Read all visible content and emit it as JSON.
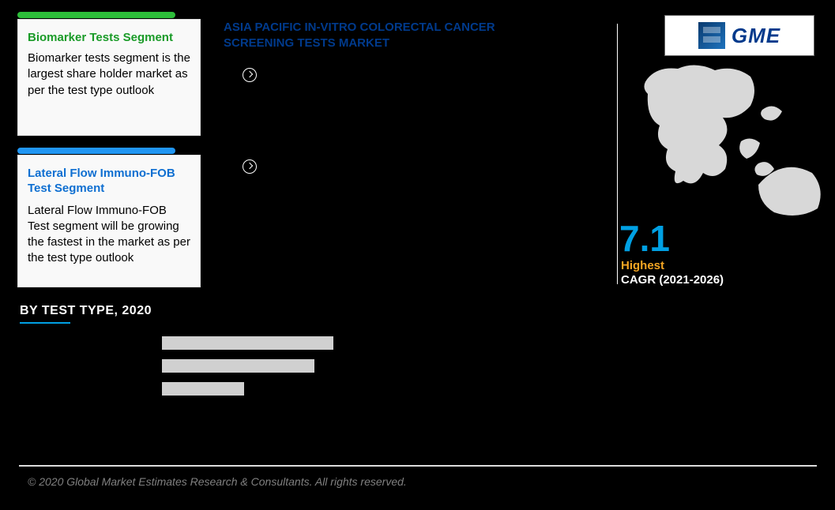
{
  "header": {
    "title": "ASIA PACIFIC IN-VITRO COLORECTAL CANCER SCREENING TESTS MARKET"
  },
  "logo": {
    "text": "GME"
  },
  "card_green": {
    "title": "Biomarker Tests Segment",
    "body": "Biomarker tests segment is the largest share holder market as per the test type outlook"
  },
  "card_blue": {
    "title": "Lateral Flow Immuno-FOB Test Segment",
    "body": "Lateral Flow Immuno-FOB Test segment will be growing the fastest in the market as per the test type outlook"
  },
  "cagr": {
    "value": "7.1",
    "highest": "Highest",
    "period": "CAGR (2021-2026)"
  },
  "section": {
    "label": "BY  TEST TYPE, 2020"
  },
  "bars": [
    {
      "bg_width": 235,
      "fill_width": 18
    },
    {
      "bg_width": 218,
      "fill_width": 25
    },
    {
      "bg_width": 190,
      "fill_width": 86
    }
  ],
  "colors": {
    "green": "#2dbd3a",
    "blue_tab": "#2196f3",
    "title_blue": "#003a8c",
    "cyan": "#00a0e3",
    "orange": "#f5a623",
    "bar_bg": "#d0d0d0",
    "bar_fill": "#000000"
  },
  "footer": {
    "text": "© 2020 Global Market Estimates Research & Consultants. All rights reserved."
  }
}
